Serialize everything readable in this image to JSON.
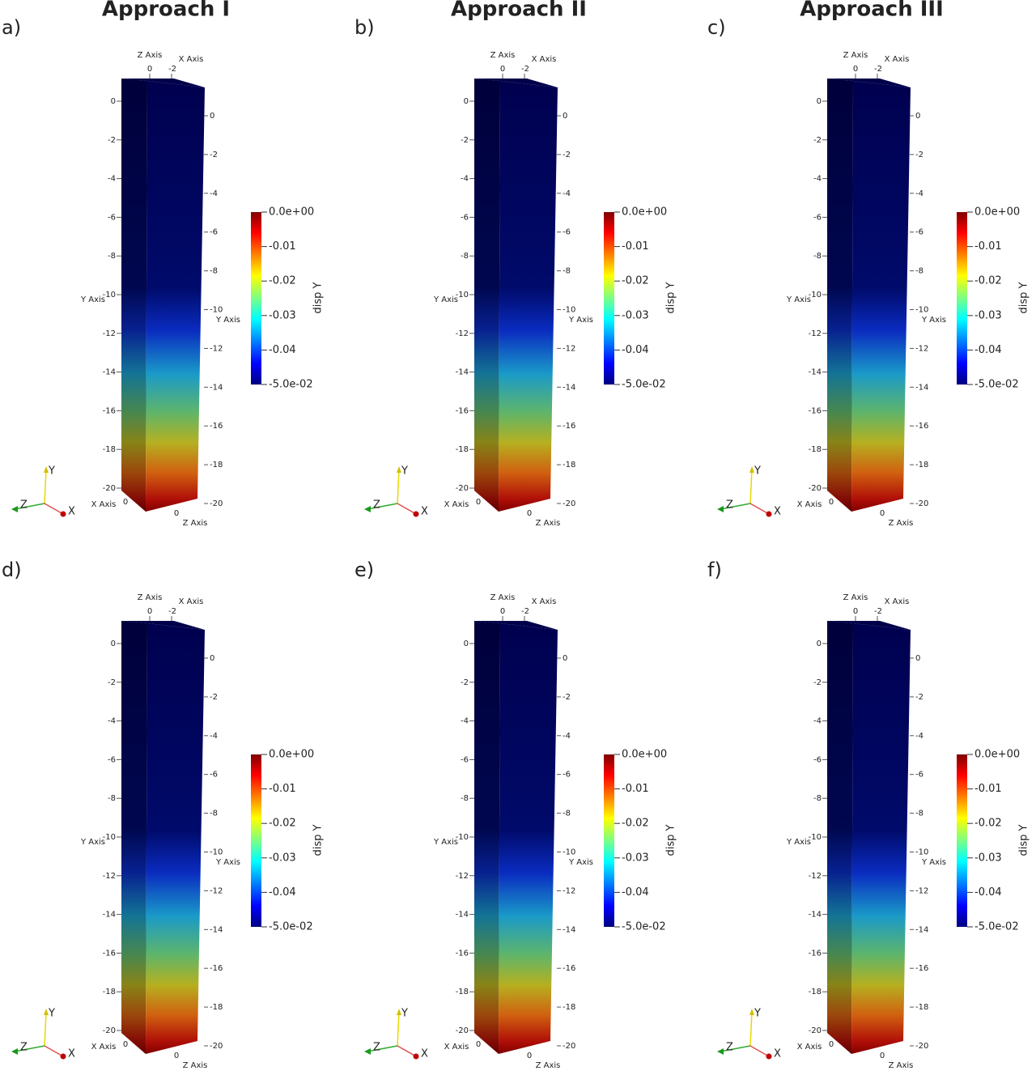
{
  "columns": [
    "Approach I",
    "Approach II",
    "Approach III"
  ],
  "panels": [
    {
      "label": "a)"
    },
    {
      "label": "b)"
    },
    {
      "label": "c)"
    },
    {
      "label": "d)"
    },
    {
      "label": "e)"
    },
    {
      "label": "f)"
    }
  ],
  "axes": {
    "y_title": "Y Axis",
    "x_title": "X Axis",
    "z_title": "Z Axis",
    "y_ticks": [
      0,
      -2,
      -4,
      -6,
      -8,
      -10,
      -12,
      -14,
      -16,
      -18,
      -20
    ],
    "x_ticks": [
      0,
      -2
    ],
    "z_ticks": [
      0
    ]
  },
  "colorbar": {
    "title": "disp Y",
    "range": [
      -0.05,
      0
    ],
    "ticks": [
      {
        "value": 0,
        "label": "0.0e+00"
      },
      -0.01,
      -0.02,
      -0.03,
      -0.04,
      {
        "value": -0.05,
        "label": "-5.0e-02"
      }
    ]
  },
  "triad": [
    "X",
    "Y",
    "Z"
  ]
}
